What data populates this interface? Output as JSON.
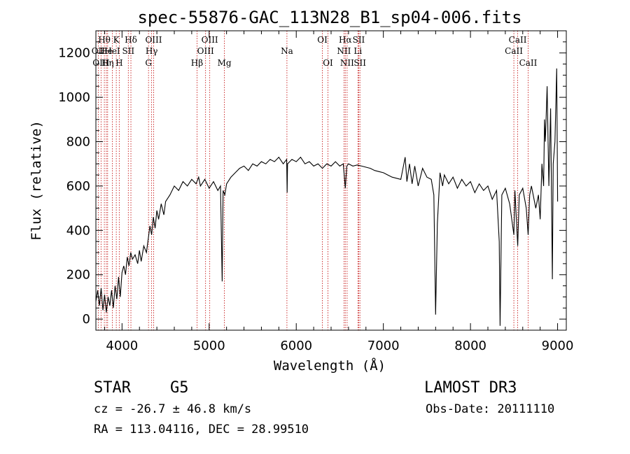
{
  "chart_data": {
    "type": "line",
    "title": "spec-55876-GAC_113N28_B1_sp04-006.fits",
    "xlabel": "Wavelength (Å)",
    "ylabel": "Flux (relative)",
    "xlim": [
      3700,
      9100
    ],
    "ylim": [
      -50,
      1300
    ],
    "xticks": [
      4000,
      5000,
      6000,
      7000,
      8000,
      9000
    ],
    "yticks": [
      0,
      200,
      400,
      600,
      800,
      1000,
      1200
    ],
    "grid": false,
    "legend": "none",
    "series": [
      {
        "line_color": "#000000",
        "points": [
          [
            3700,
            80
          ],
          [
            3720,
            130
          ],
          [
            3740,
            60
          ],
          [
            3760,
            140
          ],
          [
            3780,
            40
          ],
          [
            3800,
            110
          ],
          [
            3820,
            30
          ],
          [
            3840,
            100
          ],
          [
            3860,
            60
          ],
          [
            3880,
            130
          ],
          [
            3900,
            50
          ],
          [
            3920,
            150
          ],
          [
            3940,
            90
          ],
          [
            3960,
            190
          ],
          [
            3980,
            100
          ],
          [
            4000,
            210
          ],
          [
            4020,
            240
          ],
          [
            4040,
            200
          ],
          [
            4060,
            280
          ],
          [
            4080,
            240
          ],
          [
            4100,
            300
          ],
          [
            4120,
            270
          ],
          [
            4150,
            290
          ],
          [
            4180,
            250
          ],
          [
            4200,
            310
          ],
          [
            4220,
            260
          ],
          [
            4250,
            330
          ],
          [
            4280,
            300
          ],
          [
            4300,
            360
          ],
          [
            4320,
            420
          ],
          [
            4340,
            380
          ],
          [
            4360,
            460
          ],
          [
            4380,
            410
          ],
          [
            4400,
            490
          ],
          [
            4420,
            450
          ],
          [
            4450,
            520
          ],
          [
            4480,
            470
          ],
          [
            4500,
            530
          ],
          [
            4550,
            560
          ],
          [
            4600,
            600
          ],
          [
            4650,
            580
          ],
          [
            4700,
            620
          ],
          [
            4750,
            600
          ],
          [
            4800,
            630
          ],
          [
            4850,
            610
          ],
          [
            4880,
            640
          ],
          [
            4900,
            600
          ],
          [
            4950,
            630
          ],
          [
            5000,
            590
          ],
          [
            5050,
            620
          ],
          [
            5100,
            580
          ],
          [
            5130,
            600
          ],
          [
            5150,
            170
          ],
          [
            5160,
            580
          ],
          [
            5180,
            560
          ],
          [
            5200,
            610
          ],
          [
            5250,
            640
          ],
          [
            5300,
            660
          ],
          [
            5350,
            680
          ],
          [
            5400,
            690
          ],
          [
            5450,
            670
          ],
          [
            5500,
            700
          ],
          [
            5550,
            690
          ],
          [
            5600,
            710
          ],
          [
            5650,
            700
          ],
          [
            5700,
            720
          ],
          [
            5750,
            710
          ],
          [
            5800,
            730
          ],
          [
            5850,
            700
          ],
          [
            5890,
            720
          ],
          [
            5895,
            570
          ],
          [
            5900,
            700
          ],
          [
            5950,
            720
          ],
          [
            6000,
            710
          ],
          [
            6050,
            730
          ],
          [
            6100,
            700
          ],
          [
            6150,
            710
          ],
          [
            6200,
            690
          ],
          [
            6250,
            700
          ],
          [
            6300,
            680
          ],
          [
            6350,
            700
          ],
          [
            6400,
            690
          ],
          [
            6450,
            710
          ],
          [
            6500,
            690
          ],
          [
            6540,
            700
          ],
          [
            6563,
            590
          ],
          [
            6580,
            690
          ],
          [
            6600,
            700
          ],
          [
            6650,
            690
          ],
          [
            6700,
            695
          ],
          [
            6750,
            690
          ],
          [
            6800,
            685
          ],
          [
            6850,
            680
          ],
          [
            6900,
            670
          ],
          [
            6950,
            665
          ],
          [
            7000,
            660
          ],
          [
            7050,
            650
          ],
          [
            7100,
            640
          ],
          [
            7150,
            635
          ],
          [
            7200,
            630
          ],
          [
            7250,
            730
          ],
          [
            7270,
            620
          ],
          [
            7300,
            700
          ],
          [
            7330,
            610
          ],
          [
            7360,
            690
          ],
          [
            7400,
            600
          ],
          [
            7450,
            680
          ],
          [
            7500,
            640
          ],
          [
            7550,
            630
          ],
          [
            7580,
            560
          ],
          [
            7600,
            20
          ],
          [
            7620,
            430
          ],
          [
            7650,
            660
          ],
          [
            7680,
            600
          ],
          [
            7700,
            650
          ],
          [
            7750,
            610
          ],
          [
            7800,
            640
          ],
          [
            7850,
            590
          ],
          [
            7900,
            630
          ],
          [
            7950,
            600
          ],
          [
            8000,
            620
          ],
          [
            8050,
            570
          ],
          [
            8100,
            610
          ],
          [
            8150,
            580
          ],
          [
            8200,
            600
          ],
          [
            8250,
            540
          ],
          [
            8300,
            580
          ],
          [
            8330,
            350
          ],
          [
            8340,
            -30
          ],
          [
            8360,
            560
          ],
          [
            8400,
            590
          ],
          [
            8450,
            520
          ],
          [
            8498,
            380
          ],
          [
            8510,
            580
          ],
          [
            8542,
            330
          ],
          [
            8560,
            560
          ],
          [
            8600,
            590
          ],
          [
            8640,
            500
          ],
          [
            8662,
            380
          ],
          [
            8680,
            560
          ],
          [
            8700,
            600
          ],
          [
            8750,
            500
          ],
          [
            8780,
            560
          ],
          [
            8800,
            450
          ],
          [
            8820,
            700
          ],
          [
            8840,
            600
          ],
          [
            8850,
            900
          ],
          [
            8860,
            800
          ],
          [
            8880,
            1050
          ],
          [
            8900,
            600
          ],
          [
            8920,
            950
          ],
          [
            8940,
            180
          ],
          [
            8950,
            700
          ],
          [
            8970,
            800
          ],
          [
            8990,
            1130
          ],
          [
            9000,
            530
          ]
        ]
      }
    ],
    "spectral_lines": [
      {
        "label": "Hθ",
        "x": 3797,
        "row": 1
      },
      {
        "label": "OII",
        "x": 3727,
        "row": 2
      },
      {
        "label": "OIII",
        "x": 3759,
        "row": 3
      },
      {
        "label": "He",
        "x": 3820,
        "row": 2
      },
      {
        "label": "Hη",
        "x": 3835,
        "row": 3
      },
      {
        "label": "K",
        "x": 3934,
        "row": 1
      },
      {
        "label": "HeI",
        "x": 3889,
        "row": 2
      },
      {
        "label": "H",
        "x": 3968,
        "row": 3
      },
      {
        "label": "SII",
        "x": 4072,
        "row": 2
      },
      {
        "label": "Hδ",
        "x": 4102,
        "row": 1
      },
      {
        "label": "OIII",
        "x": 4363,
        "row": 1
      },
      {
        "label": "Hγ",
        "x": 4340,
        "row": 2
      },
      {
        "label": "G",
        "x": 4304,
        "row": 3
      },
      {
        "label": "Hβ",
        "x": 4861,
        "row": 3
      },
      {
        "label": "OIII",
        "x": 5007,
        "row": 1
      },
      {
        "label": "OIII",
        "x": 4959,
        "row": 2
      },
      {
        "label": "Mg",
        "x": 5175,
        "row": 3
      },
      {
        "label": "Na",
        "x": 5893,
        "row": 2
      },
      {
        "label": "OI",
        "x": 6300,
        "row": 1
      },
      {
        "label": "OI",
        "x": 6364,
        "row": 3
      },
      {
        "label": "Hα",
        "x": 6563,
        "row": 1
      },
      {
        "label": "SII",
        "x": 6717,
        "row": 1
      },
      {
        "label": "NII",
        "x": 6548,
        "row": 2
      },
      {
        "label": "Li",
        "x": 6708,
        "row": 2
      },
      {
        "label": "NII",
        "x": 6584,
        "row": 3
      },
      {
        "label": "SII",
        "x": 6731,
        "row": 3
      },
      {
        "label": "CaII",
        "x": 8542,
        "row": 1
      },
      {
        "label": "CaII",
        "x": 8498,
        "row": 2
      },
      {
        "label": "CaII",
        "x": 8662,
        "row": 3
      }
    ]
  },
  "info": {
    "object_class": "STAR",
    "subclass": "G5",
    "survey": "LAMOST DR3",
    "redshift": "cz = -26.7 ± 46.8 km/s",
    "obs_date": "Obs-Date: 20111110",
    "coords": "RA = 113.04116, DEC =  28.99510"
  },
  "colors": {
    "spectrum": "#000000",
    "line_markers": "#c00000",
    "background": "#ffffff"
  }
}
